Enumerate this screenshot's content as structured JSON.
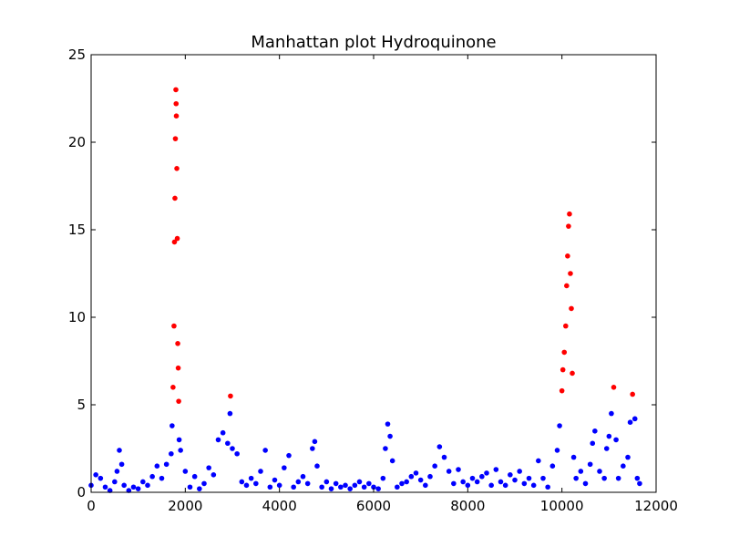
{
  "chart_data": {
    "type": "scatter",
    "title": "Manhattan plot Hydroquinone",
    "xlabel": "",
    "ylabel": "",
    "xlim": [
      0,
      12000
    ],
    "ylim": [
      0,
      25
    ],
    "xticks": [
      0,
      2000,
      4000,
      6000,
      8000,
      10000,
      12000
    ],
    "yticks": [
      0,
      5,
      10,
      15,
      20,
      25
    ],
    "grid": false,
    "colors": {
      "below_threshold": "#0000ff",
      "above_threshold": "#ff0000",
      "axes": "#000000"
    },
    "threshold": 5.1,
    "series": [
      {
        "values": [
          [
            0,
            0.4
          ],
          [
            100,
            1.0
          ],
          [
            200,
            0.8
          ],
          [
            300,
            0.3
          ],
          [
            400,
            0.1
          ],
          [
            500,
            0.6
          ],
          [
            550,
            1.2
          ],
          [
            600,
            2.4
          ],
          [
            650,
            1.6
          ],
          [
            700,
            0.4
          ],
          [
            800,
            0.1
          ],
          [
            900,
            0.3
          ],
          [
            1000,
            0.2
          ],
          [
            1100,
            0.6
          ],
          [
            1200,
            0.4
          ],
          [
            1300,
            0.9
          ],
          [
            1400,
            1.5
          ],
          [
            1500,
            0.8
          ],
          [
            1600,
            1.6
          ],
          [
            1700,
            2.2
          ],
          [
            1720,
            3.8
          ],
          [
            1740,
            6.0
          ],
          [
            1760,
            9.5
          ],
          [
            1770,
            14.3
          ],
          [
            1780,
            16.8
          ],
          [
            1790,
            20.2
          ],
          [
            1800,
            23.0
          ],
          [
            1805,
            22.2
          ],
          [
            1810,
            21.5
          ],
          [
            1820,
            18.5
          ],
          [
            1830,
            14.5
          ],
          [
            1840,
            8.5
          ],
          [
            1850,
            7.1
          ],
          [
            1860,
            5.2
          ],
          [
            1870,
            3.0
          ],
          [
            1900,
            2.4
          ],
          [
            2000,
            1.2
          ],
          [
            2100,
            0.3
          ],
          [
            2200,
            0.9
          ],
          [
            2300,
            0.2
          ],
          [
            2400,
            0.5
          ],
          [
            2500,
            1.4
          ],
          [
            2600,
            1.0
          ],
          [
            2700,
            3.0
          ],
          [
            2800,
            3.4
          ],
          [
            2900,
            2.8
          ],
          [
            2950,
            4.5
          ],
          [
            2960,
            5.5
          ],
          [
            3000,
            2.5
          ],
          [
            3100,
            2.2
          ],
          [
            3200,
            0.6
          ],
          [
            3300,
            0.4
          ],
          [
            3400,
            0.8
          ],
          [
            3500,
            0.5
          ],
          [
            3600,
            1.2
          ],
          [
            3700,
            2.4
          ],
          [
            3800,
            0.3
          ],
          [
            3900,
            0.7
          ],
          [
            4000,
            0.4
          ],
          [
            4100,
            1.4
          ],
          [
            4200,
            2.1
          ],
          [
            4300,
            0.3
          ],
          [
            4400,
            0.6
          ],
          [
            4500,
            0.9
          ],
          [
            4600,
            0.5
          ],
          [
            4700,
            2.5
          ],
          [
            4750,
            2.9
          ],
          [
            4800,
            1.5
          ],
          [
            4900,
            0.3
          ],
          [
            5000,
            0.6
          ],
          [
            5100,
            0.2
          ],
          [
            5200,
            0.5
          ],
          [
            5300,
            0.3
          ],
          [
            5400,
            0.4
          ],
          [
            5500,
            0.2
          ],
          [
            5600,
            0.4
          ],
          [
            5700,
            0.6
          ],
          [
            5800,
            0.3
          ],
          [
            5900,
            0.5
          ],
          [
            6000,
            0.3
          ],
          [
            6100,
            0.2
          ],
          [
            6200,
            0.8
          ],
          [
            6250,
            2.5
          ],
          [
            6300,
            3.9
          ],
          [
            6350,
            3.2
          ],
          [
            6400,
            1.8
          ],
          [
            6500,
            0.3
          ],
          [
            6600,
            0.5
          ],
          [
            6700,
            0.6
          ],
          [
            6800,
            0.9
          ],
          [
            6900,
            1.1
          ],
          [
            7000,
            0.7
          ],
          [
            7100,
            0.4
          ],
          [
            7200,
            0.9
          ],
          [
            7300,
            1.5
          ],
          [
            7400,
            2.6
          ],
          [
            7500,
            2.0
          ],
          [
            7600,
            1.2
          ],
          [
            7700,
            0.5
          ],
          [
            7800,
            1.3
          ],
          [
            7900,
            0.6
          ],
          [
            8000,
            0.4
          ],
          [
            8100,
            0.8
          ],
          [
            8200,
            0.6
          ],
          [
            8300,
            0.9
          ],
          [
            8400,
            1.1
          ],
          [
            8500,
            0.4
          ],
          [
            8600,
            1.3
          ],
          [
            8700,
            0.6
          ],
          [
            8800,
            0.4
          ],
          [
            8900,
            1.0
          ],
          [
            9000,
            0.7
          ],
          [
            9100,
            1.2
          ],
          [
            9200,
            0.5
          ],
          [
            9300,
            0.8
          ],
          [
            9400,
            0.4
          ],
          [
            9500,
            1.8
          ],
          [
            9600,
            0.8
          ],
          [
            9700,
            0.3
          ],
          [
            9800,
            1.5
          ],
          [
            9900,
            2.4
          ],
          [
            9950,
            3.8
          ],
          [
            10000,
            5.8
          ],
          [
            10020,
            7.0
          ],
          [
            10050,
            8.0
          ],
          [
            10080,
            9.5
          ],
          [
            10100,
            11.8
          ],
          [
            10120,
            13.5
          ],
          [
            10140,
            15.2
          ],
          [
            10160,
            15.9
          ],
          [
            10180,
            12.5
          ],
          [
            10200,
            10.5
          ],
          [
            10220,
            6.8
          ],
          [
            10250,
            2.0
          ],
          [
            10300,
            0.8
          ],
          [
            10400,
            1.2
          ],
          [
            10500,
            0.5
          ],
          [
            10600,
            1.6
          ],
          [
            10650,
            2.8
          ],
          [
            10700,
            3.5
          ],
          [
            10800,
            1.2
          ],
          [
            10900,
            0.8
          ],
          [
            10950,
            2.5
          ],
          [
            11000,
            3.2
          ],
          [
            11050,
            4.5
          ],
          [
            11100,
            6.0
          ],
          [
            11150,
            3.0
          ],
          [
            11200,
            0.8
          ],
          [
            11300,
            1.5
          ],
          [
            11400,
            2.0
          ],
          [
            11450,
            4.0
          ],
          [
            11500,
            5.6
          ],
          [
            11550,
            4.2
          ],
          [
            11600,
            0.8
          ],
          [
            11650,
            0.5
          ]
        ]
      }
    ]
  }
}
